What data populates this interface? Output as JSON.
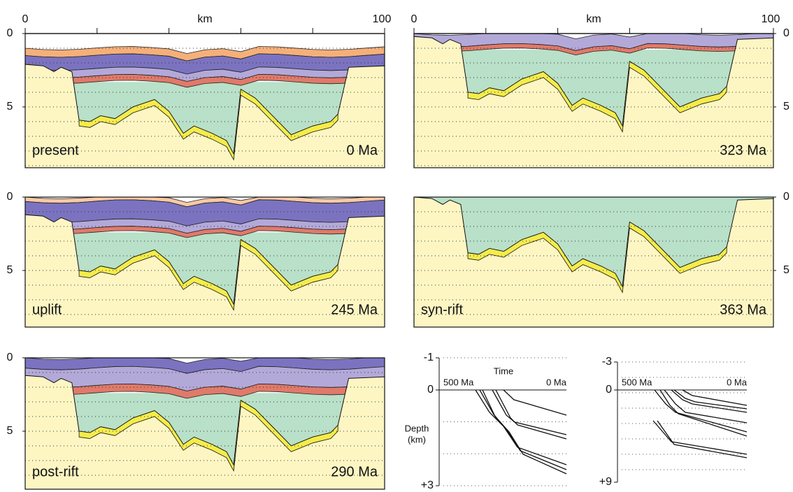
{
  "panels": [
    {
      "label": "present",
      "age": "0 Ma",
      "x_axis": {
        "start": "0",
        "title": "km",
        "end": "100"
      },
      "y_axis": [
        "0",
        "5"
      ]
    },
    {
      "age": "323 Ma",
      "x_axis": {
        "start": "0",
        "title": "km",
        "end": "100"
      },
      "y_axis": [
        "0",
        "5"
      ]
    },
    {
      "label": "uplift",
      "age": "245 Ma",
      "y_axis": [
        "0",
        "5"
      ]
    },
    {
      "label": "syn-rift",
      "age": "363 Ma",
      "y_axis": [
        "0",
        "5"
      ]
    },
    {
      "label": "post-rift",
      "age": "290 Ma",
      "y_axis": [
        "0",
        "5"
      ]
    }
  ],
  "burial_plots": [
    {
      "y_axis": [
        "-1",
        "0",
        "+3"
      ],
      "x_axis": {
        "title": "Time",
        "start": "500 Ma",
        "end": "0 Ma"
      },
      "y_title": [
        "Depth",
        "(km)"
      ]
    },
    {
      "y_axis": [
        "-3",
        "0",
        "+9"
      ],
      "x_axis": {
        "start": "500 Ma",
        "end": "0 Ma"
      }
    }
  ]
}
